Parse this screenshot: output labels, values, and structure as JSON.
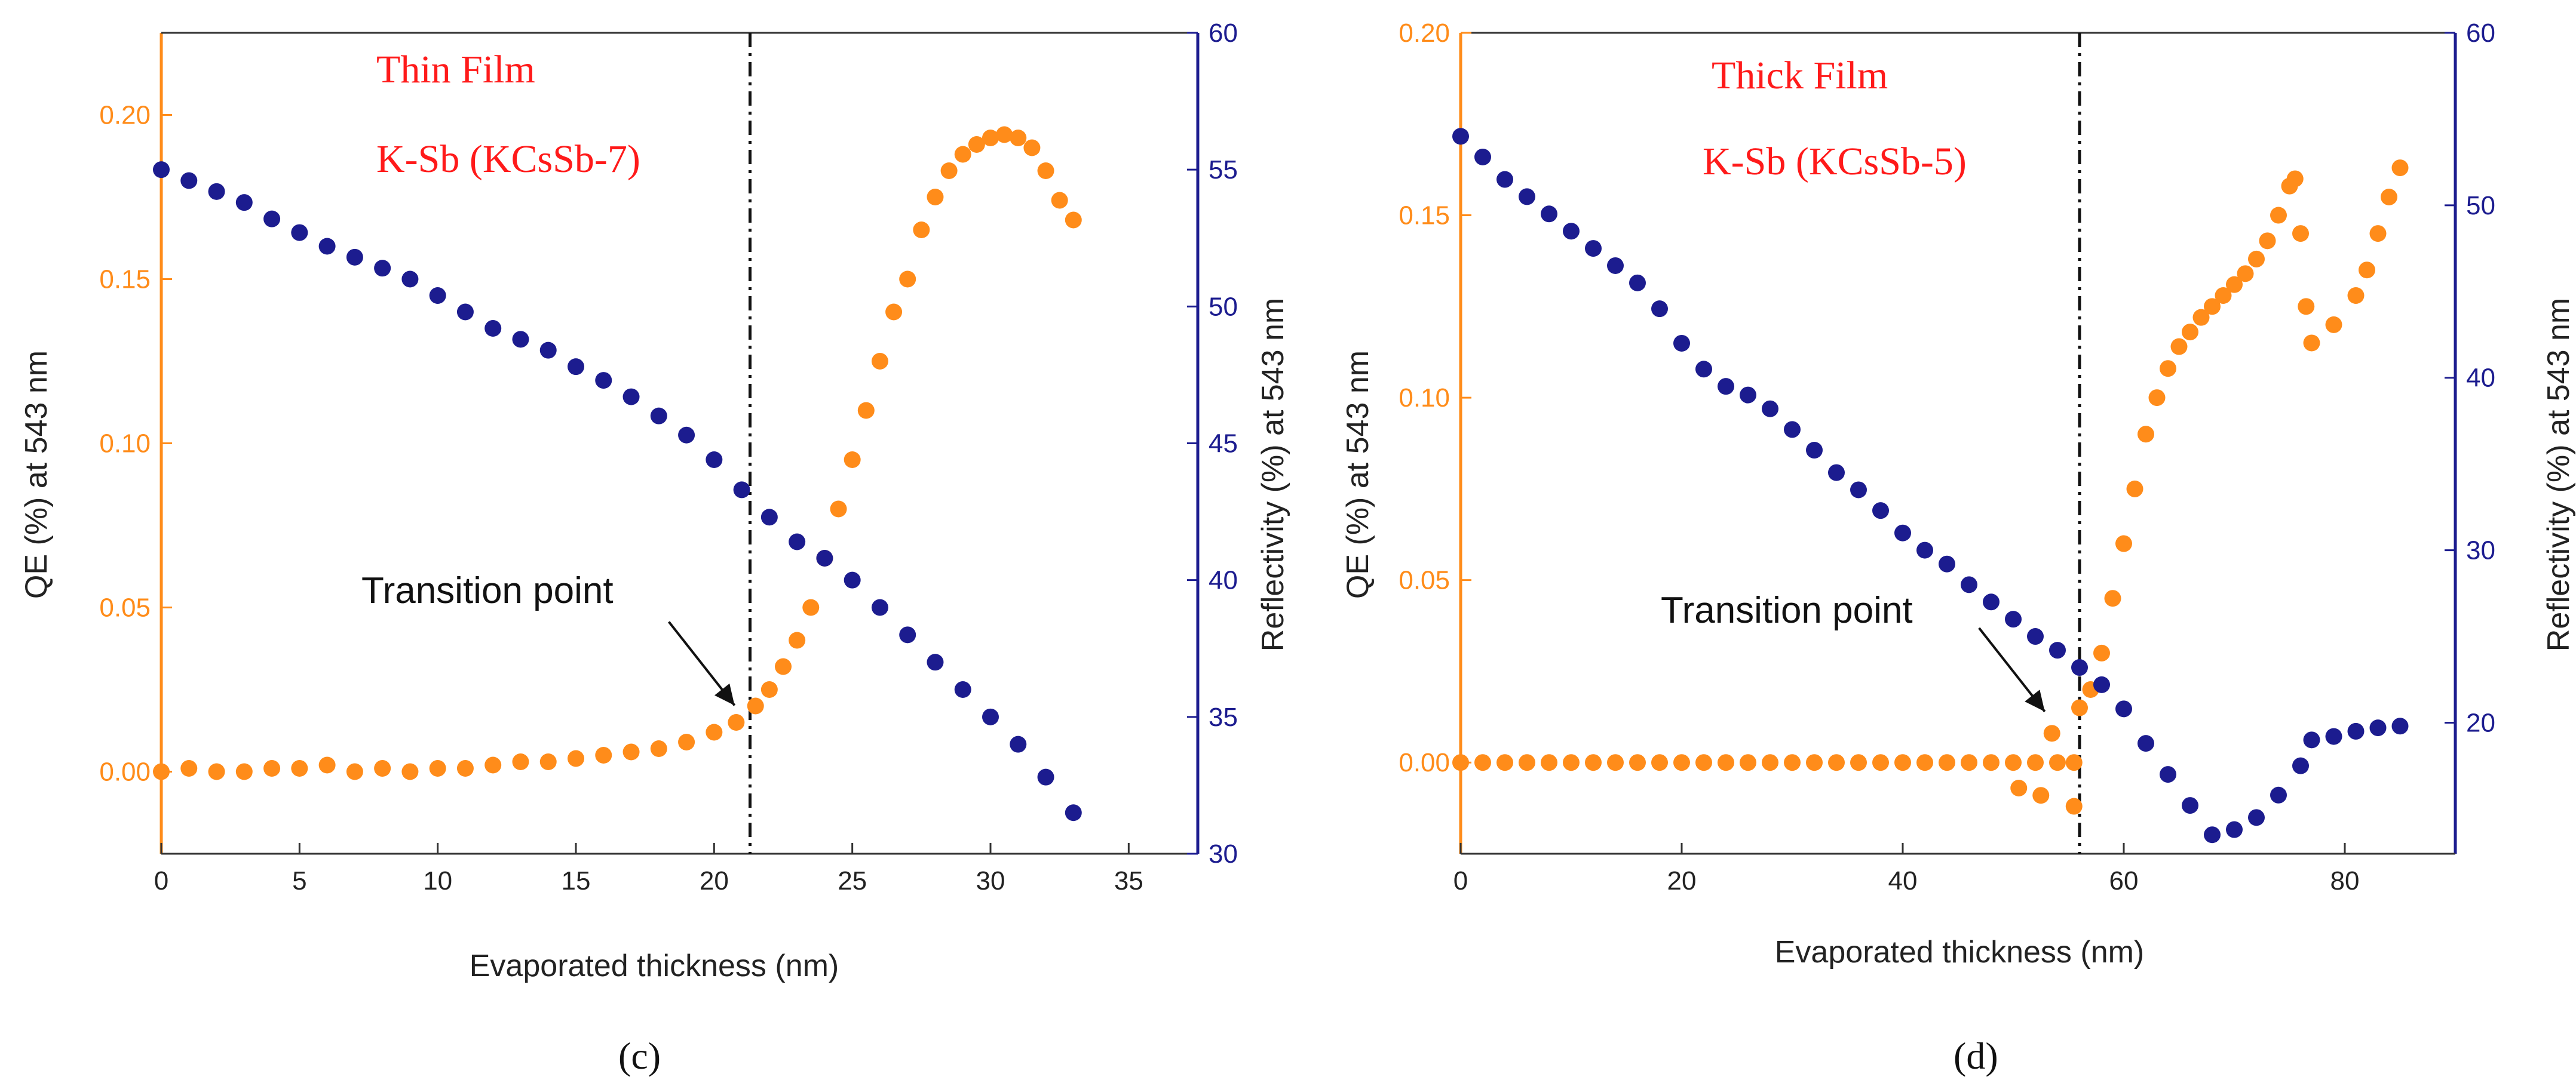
{
  "colors": {
    "qe": "#ff8c1a",
    "reflectivity": "#1c1c8f",
    "annotation": "#ff1a1a",
    "divider": "#111111"
  },
  "chart_data": [
    {
      "panel_label": "(c)",
      "type": "scatter",
      "dual_axis": true,
      "xlabel": "Evaporated thickness (nm)",
      "ylabel_left": "QE (%) at 543 nm",
      "ylabel_right": "Reflectivity (%) at 543 nm",
      "xlim": [
        0,
        37.5
      ],
      "ylim_left": [
        -0.025,
        0.225
      ],
      "ylim_right": [
        30,
        60
      ],
      "x_ticks": [
        0,
        5,
        10,
        15,
        20,
        25,
        30,
        35
      ],
      "y_left_ticks": [
        0.0,
        0.05,
        0.1,
        0.15,
        0.2
      ],
      "y_left_tick_labels": [
        "0.00",
        "0.05",
        "0.10",
        "0.15",
        "0.20"
      ],
      "y_right_ticks": [
        30,
        35,
        40,
        45,
        50,
        55,
        60
      ],
      "annotations": [
        "Thin Film",
        "K-Sb (KCsSb-7)"
      ],
      "transition_label": "Transition point",
      "transition_x": 21.3,
      "transition_arrow_target": [
        21.0,
        0.018
      ],
      "series": [
        {
          "axis": "left",
          "color": "#ff8c1a",
          "points": [
            [
              0,
              0.0
            ],
            [
              1,
              0.001
            ],
            [
              2,
              0.0
            ],
            [
              3,
              0.0
            ],
            [
              4,
              0.001
            ],
            [
              5,
              0.001
            ],
            [
              6,
              0.002
            ],
            [
              7,
              0.0
            ],
            [
              8,
              0.001
            ],
            [
              9,
              0.0
            ],
            [
              10,
              0.001
            ],
            [
              11,
              0.001
            ],
            [
              12,
              0.002
            ],
            [
              13,
              0.003
            ],
            [
              14,
              0.003
            ],
            [
              15,
              0.004
            ],
            [
              16,
              0.005
            ],
            [
              17,
              0.006
            ],
            [
              18,
              0.007
            ],
            [
              19,
              0.009
            ],
            [
              20,
              0.012
            ],
            [
              20.8,
              0.015
            ],
            [
              21.5,
              0.02
            ],
            [
              22,
              0.025
            ],
            [
              22.5,
              0.032
            ],
            [
              23,
              0.04
            ],
            [
              23.5,
              0.05
            ],
            [
              24,
              0.065
            ],
            [
              24.5,
              0.08
            ],
            [
              25,
              0.095
            ],
            [
              25.5,
              0.11
            ],
            [
              26,
              0.125
            ],
            [
              26.5,
              0.14
            ],
            [
              27,
              0.15
            ],
            [
              27.5,
              0.165
            ],
            [
              28,
              0.175
            ],
            [
              28.5,
              0.183
            ],
            [
              29,
              0.188
            ],
            [
              29.5,
              0.191
            ],
            [
              30,
              0.193
            ],
            [
              30.5,
              0.194
            ],
            [
              31,
              0.193
            ],
            [
              31.5,
              0.19
            ],
            [
              32,
              0.183
            ],
            [
              32.5,
              0.174
            ],
            [
              33,
              0.168
            ]
          ]
        },
        {
          "axis": "right",
          "color": "#1c1c8f",
          "points": [
            [
              0,
              55.0
            ],
            [
              1,
              54.6
            ],
            [
              2,
              54.2
            ],
            [
              3,
              53.8
            ],
            [
              4,
              53.2
            ],
            [
              5,
              52.7
            ],
            [
              6,
              52.2
            ],
            [
              7,
              51.8
            ],
            [
              8,
              51.4
            ],
            [
              9,
              51.0
            ],
            [
              10,
              50.4
            ],
            [
              11,
              49.8
            ],
            [
              12,
              49.2
            ],
            [
              13,
              48.8
            ],
            [
              14,
              48.4
            ],
            [
              15,
              47.8
            ],
            [
              16,
              47.3
            ],
            [
              17,
              46.7
            ],
            [
              18,
              46.0
            ],
            [
              19,
              45.3
            ],
            [
              20,
              44.4
            ],
            [
              21,
              43.3
            ],
            [
              22,
              42.3
            ],
            [
              23,
              41.4
            ],
            [
              24,
              40.8
            ],
            [
              25,
              40.0
            ],
            [
              26,
              39.0
            ],
            [
              27,
              38.0
            ],
            [
              28,
              37.0
            ],
            [
              29,
              36.0
            ],
            [
              30,
              35.0
            ],
            [
              31,
              34.0
            ],
            [
              32,
              32.8
            ],
            [
              33,
              31.5
            ]
          ]
        }
      ]
    },
    {
      "panel_label": "(d)",
      "type": "scatter",
      "dual_axis": true,
      "xlabel": "Evaporated thickness (nm)",
      "ylabel_left": "QE (%) at 543 nm",
      "ylabel_right": "Reflectivity (%) at 543 nm",
      "xlim": [
        0,
        90
      ],
      "ylim_left": [
        -0.025,
        0.2
      ],
      "ylim_right": [
        12.4,
        60
      ],
      "x_ticks": [
        0,
        20,
        40,
        60,
        80
      ],
      "y_left_ticks": [
        0.0,
        0.05,
        0.1,
        0.15,
        0.2
      ],
      "y_left_tick_labels": [
        "0.00",
        "0.05",
        "0.10",
        "0.15",
        "0.20"
      ],
      "y_right_ticks": [
        20,
        30,
        40,
        50,
        60
      ],
      "annotations": [
        "Thick Film",
        "K-Sb (KCsSb-5)"
      ],
      "transition_label": "Transition point",
      "transition_x": 56,
      "transition_arrow_target": [
        53.5,
        0.012
      ],
      "series": [
        {
          "axis": "left",
          "color": "#ff8c1a",
          "points": [
            [
              0,
              0
            ],
            [
              2,
              0
            ],
            [
              4,
              0
            ],
            [
              6,
              0
            ],
            [
              8,
              0
            ],
            [
              10,
              0
            ],
            [
              12,
              0
            ],
            [
              14,
              0
            ],
            [
              16,
              0
            ],
            [
              18,
              0
            ],
            [
              20,
              0
            ],
            [
              22,
              0
            ],
            [
              24,
              0
            ],
            [
              26,
              0
            ],
            [
              28,
              0
            ],
            [
              30,
              0
            ],
            [
              32,
              0
            ],
            [
              34,
              0
            ],
            [
              36,
              0
            ],
            [
              38,
              0
            ],
            [
              40,
              0
            ],
            [
              42,
              0
            ],
            [
              44,
              0
            ],
            [
              46,
              0
            ],
            [
              48,
              0
            ],
            [
              50,
              0
            ],
            [
              52,
              0
            ],
            [
              54,
              0
            ],
            [
              55.5,
              0
            ],
            [
              50.5,
              -0.007
            ],
            [
              52.5,
              -0.009
            ],
            [
              55.5,
              -0.012
            ],
            [
              53.5,
              0.008
            ],
            [
              56,
              0.015
            ],
            [
              57,
              0.02
            ],
            [
              58,
              0.03
            ],
            [
              59,
              0.045
            ],
            [
              60,
              0.06
            ],
            [
              61,
              0.075
            ],
            [
              62,
              0.09
            ],
            [
              63,
              0.1
            ],
            [
              64,
              0.108
            ],
            [
              65,
              0.114
            ],
            [
              66,
              0.118
            ],
            [
              67,
              0.122
            ],
            [
              68,
              0.125
            ],
            [
              69,
              0.128
            ],
            [
              70,
              0.131
            ],
            [
              71,
              0.134
            ],
            [
              72,
              0.138
            ],
            [
              73,
              0.143
            ],
            [
              74,
              0.15
            ],
            [
              75,
              0.158
            ],
            [
              75.5,
              0.16
            ],
            [
              76,
              0.145
            ],
            [
              76.5,
              0.125
            ],
            [
              77,
              0.115
            ],
            [
              79,
              0.12
            ],
            [
              81,
              0.128
            ],
            [
              82,
              0.135
            ],
            [
              83,
              0.145
            ],
            [
              84,
              0.155
            ],
            [
              85,
              0.163
            ]
          ]
        },
        {
          "axis": "right",
          "color": "#1c1c8f",
          "points": [
            [
              0,
              54.0
            ],
            [
              2,
              52.8
            ],
            [
              4,
              51.5
            ],
            [
              6,
              50.5
            ],
            [
              8,
              49.5
            ],
            [
              10,
              48.5
            ],
            [
              12,
              47.5
            ],
            [
              14,
              46.5
            ],
            [
              16,
              45.5
            ],
            [
              18,
              44.0
            ],
            [
              20,
              42.0
            ],
            [
              22,
              40.5
            ],
            [
              24,
              39.5
            ],
            [
              26,
              39.0
            ],
            [
              28,
              38.2
            ],
            [
              30,
              37.0
            ],
            [
              32,
              35.8
            ],
            [
              34,
              34.5
            ],
            [
              36,
              33.5
            ],
            [
              38,
              32.3
            ],
            [
              40,
              31.0
            ],
            [
              42,
              30.0
            ],
            [
              44,
              29.2
            ],
            [
              46,
              28.0
            ],
            [
              48,
              27.0
            ],
            [
              50,
              26.0
            ],
            [
              52,
              25.0
            ],
            [
              54,
              24.2
            ],
            [
              56,
              23.2
            ],
            [
              58,
              22.2
            ],
            [
              60,
              20.8
            ],
            [
              62,
              18.8
            ],
            [
              64,
              17.0
            ],
            [
              66,
              15.2
            ],
            [
              68,
              13.5
            ],
            [
              70,
              13.8
            ],
            [
              72,
              14.5
            ],
            [
              74,
              15.8
            ],
            [
              76,
              17.5
            ],
            [
              77,
              19.0
            ],
            [
              79,
              19.2
            ],
            [
              81,
              19.5
            ],
            [
              83,
              19.7
            ],
            [
              85,
              19.8
            ]
          ]
        }
      ]
    }
  ]
}
